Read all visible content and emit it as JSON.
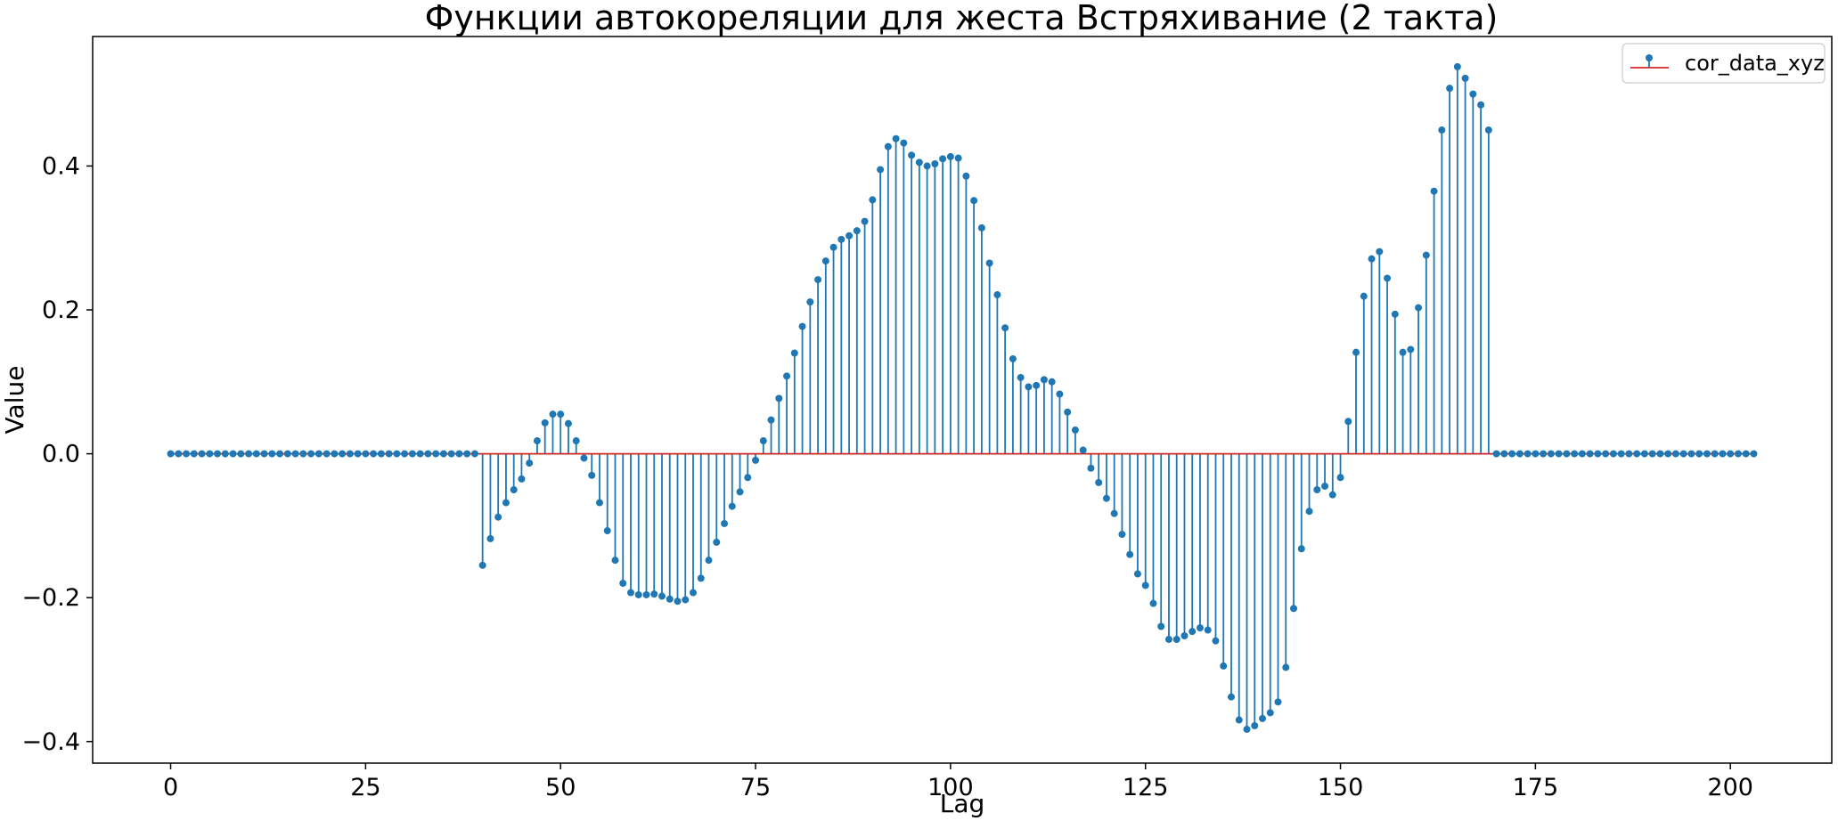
{
  "chart_data": {
    "type": "stem",
    "title": "Функции автокореляции для жеста Встряхивание (2 такта)",
    "xlabel": "Lag",
    "ylabel": "Value",
    "xlim": [
      -10,
      213
    ],
    "ylim": [
      -0.43,
      0.58
    ],
    "xticks": [
      0,
      25,
      50,
      75,
      100,
      125,
      150,
      175,
      200
    ],
    "xtick_labels": [
      "0",
      "25",
      "50",
      "75",
      "100",
      "125",
      "150",
      "175",
      "200"
    ],
    "yticks": [
      -0.4,
      -0.2,
      0.0,
      0.2,
      0.4
    ],
    "ytick_labels": [
      "−0.4",
      "−0.2",
      "0.0",
      "0.2",
      "0.4"
    ],
    "grid": false,
    "legend_position": "top-right",
    "colors": {
      "stem": "#1f77b4",
      "baseline": "#d62728"
    },
    "series": [
      {
        "name": "cor_data_xyz",
        "x_start": 0,
        "values": [
          0,
          0,
          0,
          0,
          0,
          0,
          0,
          0,
          0,
          0,
          0,
          0,
          0,
          0,
          0,
          0,
          0,
          0,
          0,
          0,
          0,
          0,
          0,
          0,
          0,
          0,
          0,
          0,
          0,
          0,
          0,
          0,
          0,
          0,
          0,
          0,
          0,
          0,
          0,
          0,
          -0.155,
          -0.118,
          -0.088,
          -0.068,
          -0.05,
          -0.035,
          -0.013,
          0.018,
          0.043,
          0.055,
          0.055,
          0.042,
          0.018,
          -0.006,
          -0.03,
          -0.068,
          -0.107,
          -0.148,
          -0.18,
          -0.193,
          -0.196,
          -0.196,
          -0.195,
          -0.198,
          -0.202,
          -0.205,
          -0.203,
          -0.193,
          -0.173,
          -0.148,
          -0.123,
          -0.097,
          -0.073,
          -0.053,
          -0.033,
          -0.009,
          0.018,
          0.047,
          0.077,
          0.108,
          0.14,
          0.177,
          0.211,
          0.242,
          0.268,
          0.287,
          0.298,
          0.303,
          0.31,
          0.323,
          0.353,
          0.395,
          0.427,
          0.438,
          0.432,
          0.415,
          0.405,
          0.4,
          0.403,
          0.41,
          0.413,
          0.411,
          0.386,
          0.352,
          0.314,
          0.265,
          0.221,
          0.175,
          0.132,
          0.106,
          0.093,
          0.095,
          0.103,
          0.1,
          0.083,
          0.058,
          0.033,
          0.005,
          -0.02,
          -0.04,
          -0.062,
          -0.083,
          -0.112,
          -0.14,
          -0.167,
          -0.183,
          -0.208,
          -0.24,
          -0.258,
          -0.258,
          -0.253,
          -0.247,
          -0.242,
          -0.245,
          -0.26,
          -0.295,
          -0.338,
          -0.37,
          -0.383,
          -0.378,
          -0.368,
          -0.36,
          -0.345,
          -0.297,
          -0.215,
          -0.132,
          -0.08,
          -0.05,
          -0.045,
          -0.057,
          -0.033,
          0.045,
          0.141,
          0.219,
          0.271,
          0.281,
          0.244,
          0.194,
          0.141,
          0.145,
          0.203,
          0.276,
          0.365,
          0.45,
          0.508,
          0.538,
          0.522,
          0.5,
          0.485,
          0.45,
          0,
          0,
          0,
          0,
          0,
          0,
          0,
          0,
          0,
          0,
          0,
          0,
          0,
          0,
          0,
          0,
          0,
          0,
          0,
          0,
          0,
          0,
          0,
          0,
          0,
          0,
          0,
          0,
          0,
          0,
          0,
          0,
          0,
          0
        ]
      }
    ]
  }
}
